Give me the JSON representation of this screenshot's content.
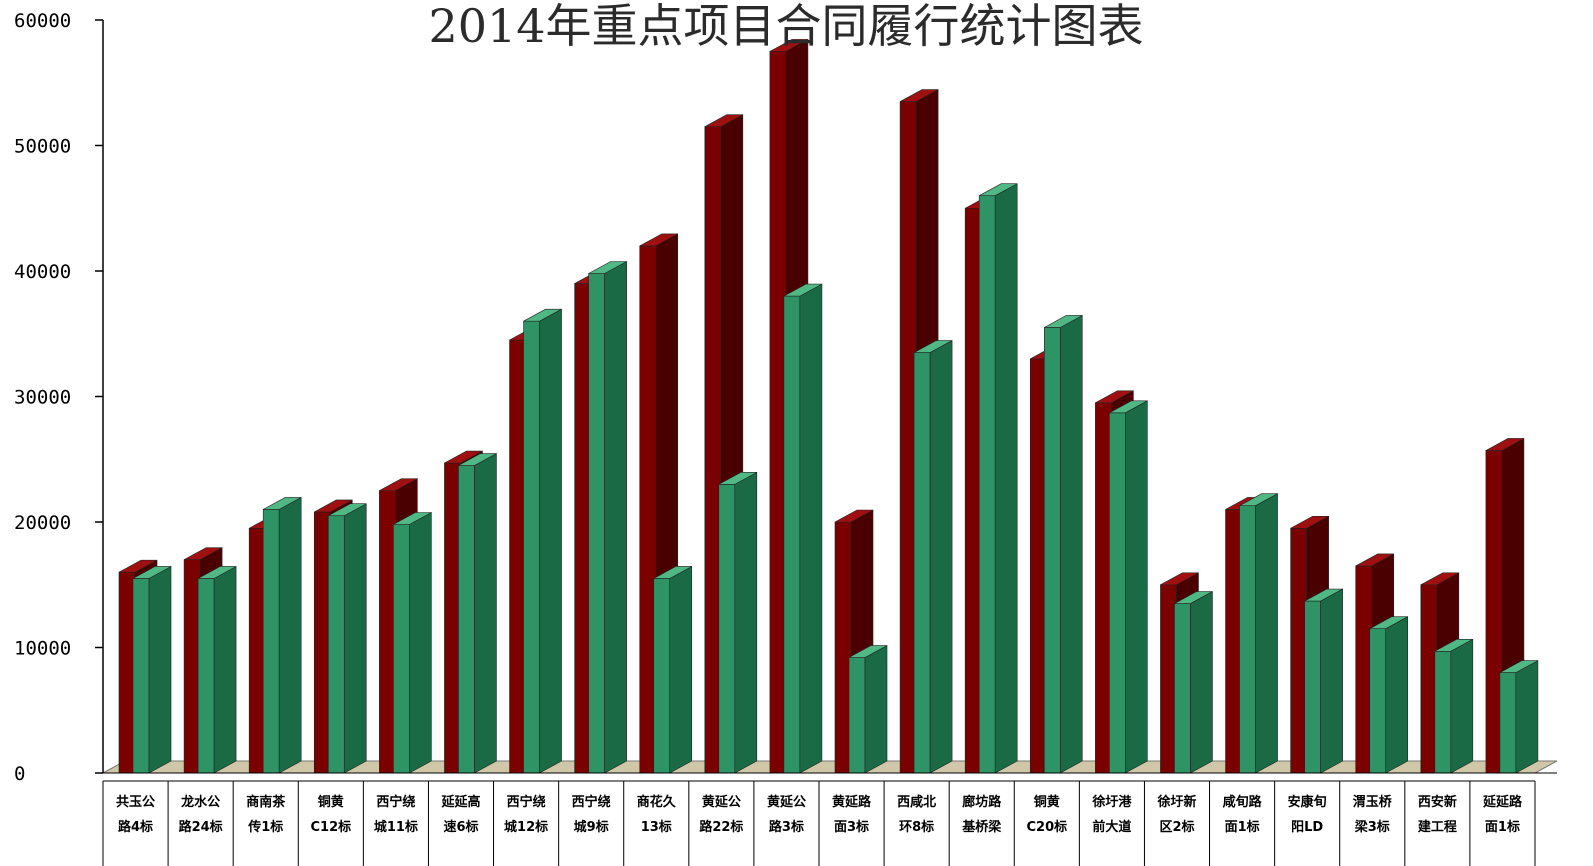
{
  "chart_data": {
    "type": "bar",
    "title": "2014年重点项目合同履行统计图表",
    "xlabel": "",
    "ylabel": "",
    "ylim": [
      0,
      60000
    ],
    "yticks": [
      "0",
      "10000",
      "20000",
      "30000",
      "40000",
      "50000",
      "60000"
    ],
    "grid": false,
    "legend": "none",
    "style": "3d-bar",
    "categories": [
      {
        "line1": "共玉公",
        "line2": "路4标"
      },
      {
        "line1": "龙水公",
        "line2": "路24标"
      },
      {
        "line1": "商南茶",
        "line2": "传1标"
      },
      {
        "line1": "铜黄",
        "line2": "C12标"
      },
      {
        "line1": "西宁绕",
        "line2": "城11标"
      },
      {
        "line1": "延延高",
        "line2": "速6标"
      },
      {
        "line1": "西宁绕",
        "line2": "城12标"
      },
      {
        "line1": "西宁绕",
        "line2": "城9标"
      },
      {
        "line1": "商花久",
        "line2": "13标"
      },
      {
        "line1": "黄延公",
        "line2": "路22标"
      },
      {
        "line1": "黄延公",
        "line2": "路3标"
      },
      {
        "line1": "黄延路",
        "line2": "面3标"
      },
      {
        "line1": "西咸北",
        "line2": "环8标"
      },
      {
        "line1": "廊坊路",
        "line2": "基桥梁"
      },
      {
        "line1": "铜黄",
        "line2": "C20标"
      },
      {
        "line1": "徐圩港",
        "line2": "前大道"
      },
      {
        "line1": "徐圩新",
        "line2": "区2标"
      },
      {
        "line1": "咸旬路",
        "line2": "面1标"
      },
      {
        "line1": "安康旬",
        "line2": "阳LD"
      },
      {
        "line1": "渭玉桥",
        "line2": "梁3标"
      },
      {
        "line1": "西安新",
        "line2": "建工程"
      },
      {
        "line1": "延延路",
        "line2": "面1标"
      }
    ],
    "series": [
      {
        "color": "#7b0000",
        "side_color": "#4a0000",
        "top_color": "#a01010",
        "values": [
          16000,
          17000,
          19500,
          20800,
          22500,
          24700,
          34500,
          39000,
          42000,
          51500,
          57500,
          20000,
          53500,
          45000,
          33000,
          29500,
          15000,
          21000,
          19500,
          16500,
          15000,
          25700
        ]
      },
      {
        "color": "#2e9466",
        "side_color": "#1a6b45",
        "top_color": "#4fb884",
        "values": [
          15500,
          15500,
          21000,
          20500,
          19800,
          24500,
          36000,
          39800,
          15500,
          23000,
          38000,
          9200,
          33500,
          46000,
          35500,
          28700,
          13500,
          21300,
          13700,
          11500,
          9700,
          8000
        ]
      }
    ]
  }
}
